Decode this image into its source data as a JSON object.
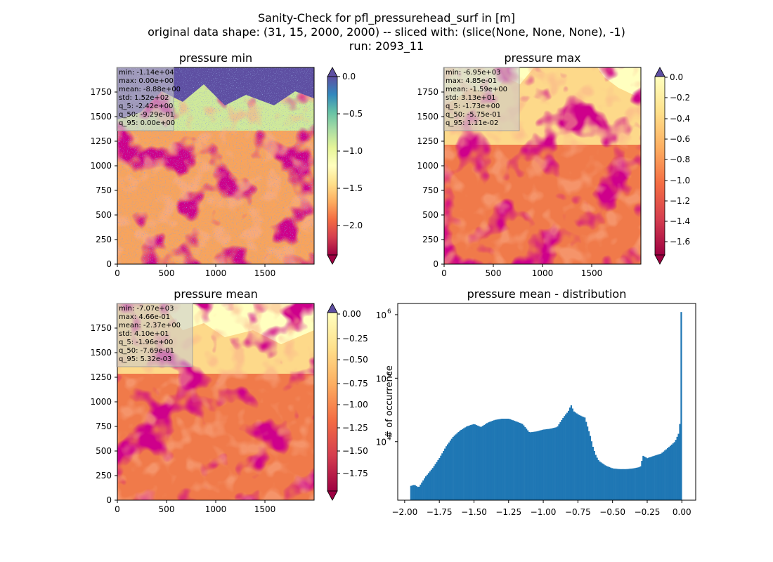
{
  "suptitle": [
    "Sanity-Check for pfl_pressurehead_surf in [m]",
    "original data shape: (31, 15, 2000, 2000) -- sliced with: (slice(None, None, None), -1)",
    "run: 2093_11"
  ],
  "colormap": [
    "#9e0142",
    "#d53e4f",
    "#f46d43",
    "#fdae61",
    "#fee08b",
    "#ffffbf",
    "#e6f598",
    "#abdda4",
    "#66c2a5",
    "#3288bd",
    "#5e4fa2"
  ],
  "chart_data": [
    {
      "type": "heatmap",
      "title": "pressure min",
      "xticks": [
        0,
        500,
        1000,
        1500
      ],
      "yticks": [
        0,
        250,
        500,
        750,
        1000,
        1250,
        1500,
        1750
      ],
      "xlim": [
        0,
        2000
      ],
      "ylim": [
        0,
        2000
      ],
      "colorbar": {
        "min": -2.4,
        "max": 0.0,
        "ticks": [
          0.0,
          -0.5,
          -1.0,
          -1.5,
          -2.0
        ],
        "tick_labels": [
          "0.0",
          "−0.5",
          "−1.0",
          "−1.5",
          "−2.0"
        ],
        "extend": "both"
      },
      "stats": [
        "min: -1.14e+04",
        "max: 0.00e+00",
        "mean: -8.88e+00",
        "std: 1.52e+02",
        "q_5: -2.42e+00",
        "q_50: -9.29e-01",
        "q_95: 0.00e+00"
      ]
    },
    {
      "type": "heatmap",
      "title": "pressure max",
      "xticks": [
        0,
        500,
        1000,
        1500
      ],
      "yticks": [
        0,
        250,
        500,
        750,
        1000,
        1250,
        1500,
        1750
      ],
      "xlim": [
        0,
        2000
      ],
      "ylim": [
        0,
        2000
      ],
      "colorbar": {
        "min": -1.73,
        "max": 0.0,
        "ticks": [
          0.0,
          -0.2,
          -0.4,
          -0.6,
          -0.8,
          -1.0,
          -1.2,
          -1.4,
          -1.6
        ],
        "tick_labels": [
          "0.0",
          "−0.2",
          "−0.4",
          "−0.6",
          "−0.8",
          "−1.0",
          "−1.2",
          "−1.4",
          "−1.6"
        ],
        "extend": "both"
      },
      "stats": [
        "min: -6.95e+03",
        "max: 4.85e-01",
        "mean: -1.59e+00",
        "std: 3.13e+01",
        "q_5: -1.73e+00",
        "q_50: -5.75e-01",
        "q_95: 1.11e-02"
      ]
    },
    {
      "type": "heatmap",
      "title": "pressure mean",
      "xticks": [
        0,
        500,
        1000,
        1500
      ],
      "yticks": [
        0,
        250,
        500,
        750,
        1000,
        1250,
        1500,
        1750
      ],
      "xlim": [
        0,
        2000
      ],
      "ylim": [
        0,
        2000
      ],
      "colorbar": {
        "min": -1.96,
        "max": 0.0,
        "ticks": [
          0.0,
          -0.25,
          -0.5,
          -0.75,
          -1.0,
          -1.25,
          -1.5,
          -1.75
        ],
        "tick_labels": [
          "0.00",
          "−0.25",
          "−0.50",
          "−0.75",
          "−1.00",
          "−1.25",
          "−1.50",
          "−1.75"
        ],
        "extend": "both"
      },
      "stats": [
        "min: -7.07e+03",
        "max: 4.66e-01",
        "mean: -2.37e+00",
        "std: 4.10e+01",
        "q_5: -1.96e+00",
        "q_50: -7.69e-01",
        "q_95: 5.32e-03"
      ]
    },
    {
      "type": "bar",
      "subtype": "histogram",
      "title": "pressure mean - distribution",
      "ylabel": "# of occurrence",
      "xlabel": "",
      "color": "#1f77b4",
      "xlim": [
        -2.05,
        0.1
      ],
      "ylim": [
        1200,
        1500000
      ],
      "yscale": "log",
      "xticks": [
        -2.0,
        -1.75,
        -1.5,
        -1.25,
        -1.0,
        -0.75,
        -0.5,
        -0.25,
        0.0
      ],
      "xtick_labels": [
        "−2.00",
        "−1.75",
        "−1.50",
        "−1.25",
        "−1.00",
        "−0.75",
        "−0.50",
        "−0.25",
        "0.00"
      ],
      "yticks": [
        10000,
        100000,
        1000000
      ],
      "ytick_labels": [
        "10^4",
        "10^5",
        "10^6"
      ],
      "curve_x": [
        -1.96,
        -1.93,
        -1.9,
        -1.85,
        -1.8,
        -1.75,
        -1.7,
        -1.65,
        -1.6,
        -1.55,
        -1.5,
        -1.45,
        -1.4,
        -1.35,
        -1.3,
        -1.25,
        -1.2,
        -1.15,
        -1.1,
        -1.05,
        -1.0,
        -0.95,
        -0.9,
        -0.85,
        -0.82,
        -0.8,
        -0.78,
        -0.75,
        -0.72,
        -0.7,
        -0.68,
        -0.66,
        -0.64,
        -0.62,
        -0.6,
        -0.55,
        -0.5,
        -0.45,
        -0.4,
        -0.35,
        -0.3,
        -0.28,
        -0.25,
        -0.2,
        -0.15,
        -0.1,
        -0.05,
        -0.02,
        -0.01,
        0.0
      ],
      "curve_y": [
        2000,
        2100,
        1900,
        2800,
        3800,
        5500,
        8500,
        12000,
        15000,
        17500,
        19000,
        17000,
        20000,
        22000,
        23000,
        23000,
        21000,
        19000,
        14000,
        14500,
        15500,
        16000,
        17000,
        25000,
        30000,
        38000,
        30000,
        27000,
        25000,
        24000,
        17000,
        12000,
        8000,
        6000,
        5000,
        4200,
        3800,
        3700,
        3700,
        3800,
        4000,
        6000,
        5500,
        6000,
        6500,
        8000,
        10000,
        14000,
        25000,
        1100000
      ]
    }
  ]
}
